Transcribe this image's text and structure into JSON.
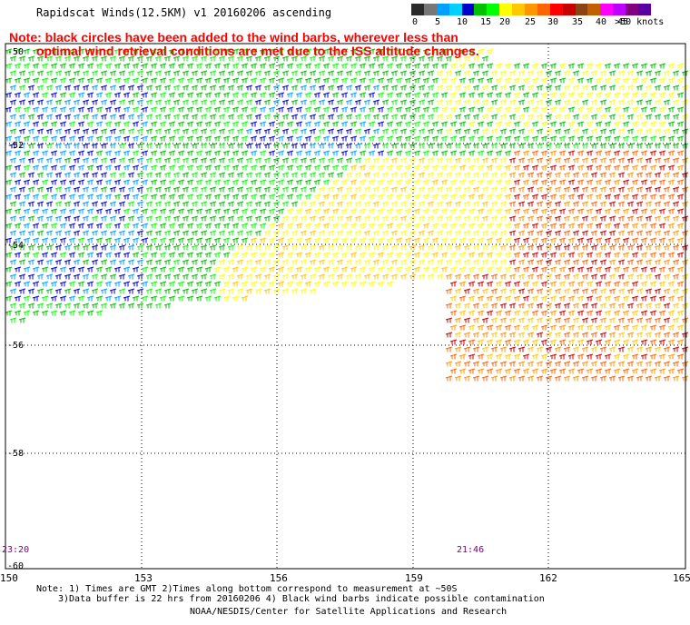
{
  "title": "Rapidscat Winds(12.5KM) v1 20160206 ascending",
  "note_line1": "Note: black circles have been added to the wind barbs, wherever less than",
  "note_line2": "optimal wind retrieval conditions are met due to the ISS altitude changes.",
  "scale": {
    "colors": [
      "#2a2a2a",
      "#777777",
      "#00a0ff",
      "#00d0ff",
      "#0000c8",
      "#00c000",
      "#00ff00",
      "#ffff00",
      "#ffc800",
      "#ff9600",
      "#ff6400",
      "#ff0000",
      "#c80000",
      "#8b4513",
      "#c06000",
      "#ff00ff",
      "#c000ff",
      "#800080",
      "#5a00a0"
    ],
    "labels": [
      "0",
      "5",
      "10",
      "15",
      "20",
      "25",
      "30",
      "35",
      "40",
      "45",
      ">50 knots"
    ]
  },
  "lat_labels": [
    "-50",
    "-52",
    "-54",
    "-56",
    "-58",
    "-60"
  ],
  "lon_labels": [
    "150",
    "153",
    "156",
    "159",
    "162",
    "165"
  ],
  "time_labels": {
    "left": "23:20",
    "right": "21:46"
  },
  "footer": {
    "line1": "Note: 1) Times are GMT 2)Times along bottom correspond to measurement at ~50S",
    "line2": "3)Data buffer is 22 hrs from 20160206 4) Black wind barbs indicate possible contamination",
    "line3": "NOAA/NESDIS/Center for Satellite Applications and Research"
  }
}
